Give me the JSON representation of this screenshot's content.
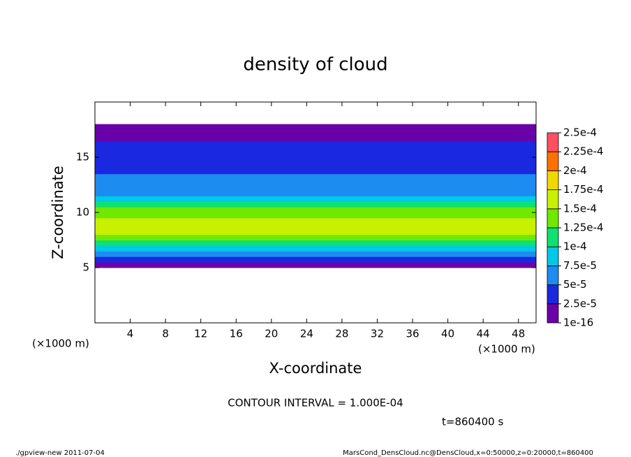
{
  "chart_data": {
    "type": "heatmap",
    "title": "density of cloud",
    "x_label": "X-coordinate",
    "y_label": "Z-coordinate",
    "x_unit": "(×1000 m)",
    "y_unit": "(×1000 m)",
    "annotation": "CONTOUR INTERVAL = 1.000E-04",
    "time_label": "t=860400 s",
    "footer_left": "./gpview-new   2011-07-04",
    "footer_right": "MarsCond_DensCloud.nc@DensCloud,x=0:50000,z=0:20000,t=860400",
    "xlim": [
      0,
      50
    ],
    "ylim": [
      0,
      20
    ],
    "xticks": [
      4,
      8,
      12,
      16,
      20,
      24,
      28,
      32,
      36,
      40,
      44,
      48
    ],
    "yticks": [
      5,
      10,
      15
    ],
    "z_bins": [
      5,
      5.5,
      6,
      6.5,
      7,
      7.5,
      8,
      8.5,
      9,
      9.5,
      10,
      10.5,
      11,
      11.5,
      12,
      12.5,
      13,
      13.5,
      14,
      14.5,
      15,
      15.5,
      16,
      16.5,
      17,
      17.5,
      18
    ],
    "values": [
      2e-05,
      4e-05,
      6e-05,
      8e-05,
      0.00011,
      0.00013,
      0.00015,
      0.00016,
      0.00016,
      0.000145,
      0.000125,
      0.000105,
      8.5e-05,
      7e-05,
      6e-05,
      5.5e-05,
      5e-05,
      4.5e-05,
      4.2e-05,
      4e-05,
      4e-05,
      3.5e-05,
      3e-05,
      2e-05,
      1e-05,
      5e-06
    ],
    "colorbar_levels": [
      {
        "value": 1e-16,
        "label": "1e-16"
      },
      {
        "value": 2.5e-05,
        "label": "2.5e-5"
      },
      {
        "value": 5e-05,
        "label": "5e-5"
      },
      {
        "value": 7.5e-05,
        "label": "7.5e-5"
      },
      {
        "value": 0.0001,
        "label": "1e-4"
      },
      {
        "value": 0.000125,
        "label": "1.25e-4"
      },
      {
        "value": 0.00015,
        "label": "1.5e-4"
      },
      {
        "value": 0.000175,
        "label": "1.75e-4"
      },
      {
        "value": 0.0002,
        "label": "2e-4"
      },
      {
        "value": 0.000225,
        "label": "2.25e-4"
      },
      {
        "value": 0.00025,
        "label": "2.5e-4"
      }
    ],
    "colorbar_colors": [
      "#6a00a8",
      "#1a28e0",
      "#1c8cf0",
      "#00c8e8",
      "#10e070",
      "#70e800",
      "#c8f000",
      "#f0d800",
      "#ff7000",
      "#ff5060"
    ]
  }
}
